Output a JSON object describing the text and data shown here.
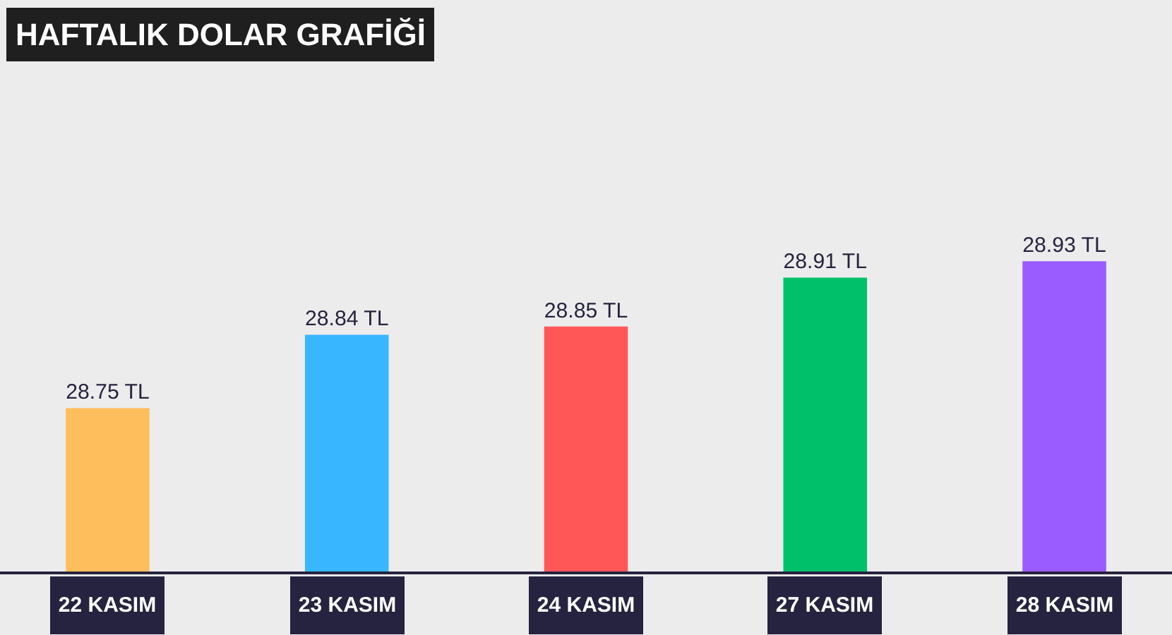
{
  "chart_data": {
    "type": "bar",
    "title": "HAFTALIK DOLAR GRAFİĞİ",
    "categories": [
      "22 KASIM",
      "23 KASIM",
      "24 KASIM",
      "27 KASIM",
      "28 KASIM"
    ],
    "values": [
      28.75,
      28.84,
      28.85,
      28.91,
      28.93
    ],
    "colors": [
      "#ffbe5c",
      "#38b6ff",
      "#ff5757",
      "#00c16a",
      "#9b5cff"
    ],
    "value_labels": [
      "28.75 TL",
      "28.84 TL",
      "28.85 TL",
      "28.91 TL",
      "28.93 TL"
    ],
    "ylim": [
      28.55,
      29.25
    ],
    "grid": false,
    "legend": false
  }
}
